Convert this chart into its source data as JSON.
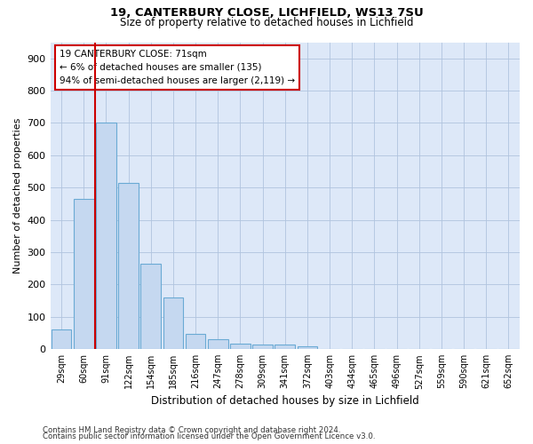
{
  "title1": "19, CANTERBURY CLOSE, LICHFIELD, WS13 7SU",
  "title2": "Size of property relative to detached houses in Lichfield",
  "xlabel": "Distribution of detached houses by size in Lichfield",
  "ylabel": "Number of detached properties",
  "categories": [
    "29sqm",
    "60sqm",
    "91sqm",
    "122sqm",
    "154sqm",
    "185sqm",
    "216sqm",
    "247sqm",
    "278sqm",
    "309sqm",
    "341sqm",
    "372sqm",
    "403sqm",
    "434sqm",
    "465sqm",
    "496sqm",
    "527sqm",
    "559sqm",
    "590sqm",
    "621sqm",
    "652sqm"
  ],
  "values": [
    60,
    465,
    700,
    515,
    265,
    160,
    46,
    32,
    18,
    15,
    15,
    8,
    0,
    0,
    0,
    0,
    0,
    0,
    0,
    0,
    0
  ],
  "bar_color": "#c5d8f0",
  "bar_edge_color": "#6aaad4",
  "vline_x": 1.5,
  "vline_color": "#cc0000",
  "ylim": [
    0,
    950
  ],
  "yticks": [
    0,
    100,
    200,
    300,
    400,
    500,
    600,
    700,
    800,
    900
  ],
  "annotation_text": "19 CANTERBURY CLOSE: 71sqm\n← 6% of detached houses are smaller (135)\n94% of semi-detached houses are larger (2,119) →",
  "annotation_box_color": "#ffffff",
  "annotation_box_edge": "#cc0000",
  "footer1": "Contains HM Land Registry data © Crown copyright and database right 2024.",
  "footer2": "Contains public sector information licensed under the Open Government Licence v3.0.",
  "plot_bg_color": "#dde8f8"
}
